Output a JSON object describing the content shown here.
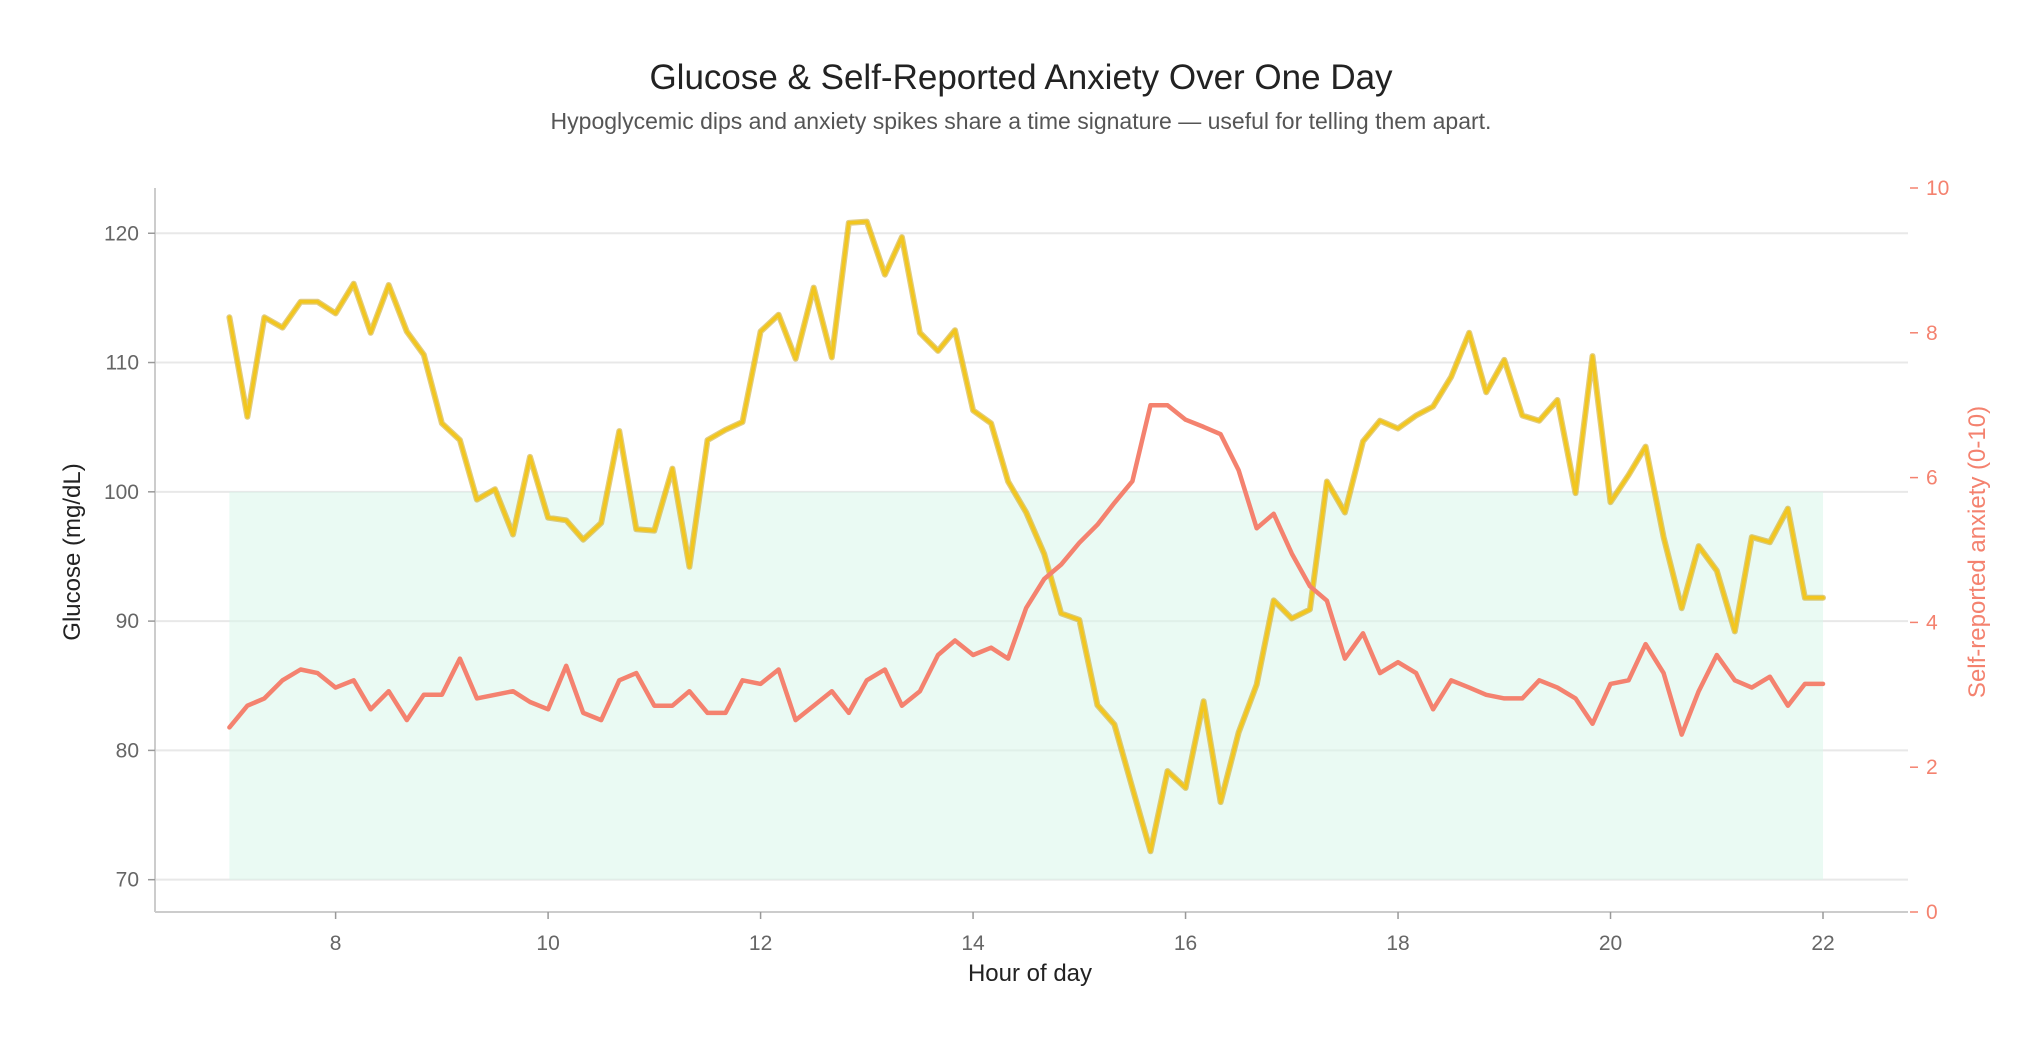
{
  "chart_data": {
    "type": "line",
    "title": "Glucose & Self-Reported Anxiety Over One Day",
    "subtitle": "Hypoglycemic dips and anxiety spikes share a time signature — useful for telling them apart.",
    "xlabel": "Hour of day",
    "ylabel": "Glucose (mg/dL)",
    "y2label": "Self-reported anxiety (0-10)",
    "xlim": [
      6.3,
      22.8
    ],
    "ylim": [
      67.5,
      123.5
    ],
    "y2lim": [
      0,
      10
    ],
    "x_ticks": [
      8,
      10,
      12,
      14,
      16,
      18,
      20,
      22
    ],
    "y_ticks": [
      70,
      80,
      90,
      100,
      110,
      120
    ],
    "y2_ticks": [
      0,
      2,
      4,
      6,
      8,
      10
    ],
    "grid": true,
    "target_band": {
      "x": [
        7,
        22
      ],
      "y": [
        70,
        100
      ],
      "color": "#d9f5ea"
    },
    "x": [
      7.0,
      7.17,
      7.33,
      7.5,
      7.67,
      7.83,
      8.0,
      8.17,
      8.33,
      8.5,
      8.67,
      8.83,
      9.0,
      9.17,
      9.33,
      9.5,
      9.67,
      9.83,
      10.0,
      10.17,
      10.33,
      10.5,
      10.67,
      10.83,
      11.0,
      11.17,
      11.33,
      11.5,
      11.67,
      11.83,
      12.0,
      12.17,
      12.33,
      12.5,
      12.67,
      12.83,
      13.0,
      13.17,
      13.33,
      13.5,
      13.67,
      13.83,
      14.0,
      14.17,
      14.33,
      14.5,
      14.67,
      14.83,
      15.0,
      15.17,
      15.33,
      15.5,
      15.67,
      15.83,
      16.0,
      16.17,
      16.33,
      16.5,
      16.67,
      16.83,
      17.0,
      17.17,
      17.33,
      17.5,
      17.67,
      17.83,
      18.0,
      18.17,
      18.33,
      18.5,
      18.67,
      18.83,
      19.0,
      19.17,
      19.33,
      19.5,
      19.67,
      19.83,
      20.0,
      20.17,
      20.33,
      20.5,
      20.67,
      20.83,
      21.0,
      21.17,
      21.33,
      21.5,
      21.67,
      21.83,
      22.0
    ],
    "series": [
      {
        "name": "Glucose",
        "axis": "left",
        "color": "#f2c61f",
        "values": [
          113.5,
          105.8,
          113.5,
          112.7,
          114.7,
          114.7,
          113.8,
          116.1,
          112.3,
          116.0,
          112.4,
          110.6,
          105.3,
          104.0,
          99.4,
          100.2,
          96.7,
          102.7,
          98.0,
          97.8,
          96.3,
          97.6,
          104.7,
          97.1,
          97.0,
          101.8,
          94.2,
          104.0,
          104.8,
          105.4,
          112.4,
          113.7,
          110.3,
          115.8,
          110.4,
          120.8,
          120.9,
          116.8,
          119.7,
          112.3,
          110.9,
          112.5,
          106.3,
          105.3,
          100.8,
          98.4,
          95.2,
          90.6,
          90.1,
          83.5,
          82.0,
          77.1,
          72.2,
          78.4,
          77.1,
          83.8,
          76.0,
          81.4,
          85.1,
          91.6,
          90.2,
          90.9,
          100.8,
          98.4,
          103.9,
          105.5,
          104.9,
          105.9,
          106.6,
          108.9,
          112.3,
          107.7,
          110.2,
          105.9,
          105.5,
          107.1,
          99.9,
          110.5,
          99.2,
          101.3,
          103.5,
          96.5,
          91.0,
          95.8,
          93.9,
          89.2,
          96.5,
          96.1,
          98.7,
          91.8,
          91.8
        ]
      },
      {
        "name": "Anxiety",
        "axis": "right",
        "color": "#f4826f",
        "values": [
          2.55,
          2.85,
          2.95,
          3.2,
          3.35,
          3.3,
          3.1,
          3.2,
          2.8,
          3.05,
          2.65,
          3.0,
          3.0,
          3.5,
          2.95,
          3.0,
          3.05,
          2.9,
          2.8,
          3.4,
          2.75,
          2.65,
          3.2,
          3.3,
          2.85,
          2.85,
          3.05,
          2.75,
          2.75,
          3.2,
          3.15,
          3.35,
          2.65,
          2.85,
          3.05,
          2.75,
          3.2,
          3.35,
          2.85,
          3.05,
          3.55,
          3.75,
          3.55,
          3.65,
          3.5,
          4.2,
          4.6,
          4.8,
          5.1,
          5.35,
          5.65,
          5.95,
          7.0,
          7.0,
          6.8,
          6.7,
          6.6,
          6.1,
          5.3,
          5.5,
          4.95,
          4.5,
          4.3,
          3.5,
          3.85,
          3.3,
          3.45,
          3.3,
          2.8,
          3.2,
          3.1,
          3.0,
          2.95,
          2.95,
          3.2,
          3.1,
          2.95,
          2.6,
          3.15,
          3.2,
          3.7,
          3.3,
          2.45,
          3.05,
          3.55,
          3.2,
          3.1,
          3.25,
          2.85,
          3.15,
          3.15
        ]
      }
    ]
  }
}
